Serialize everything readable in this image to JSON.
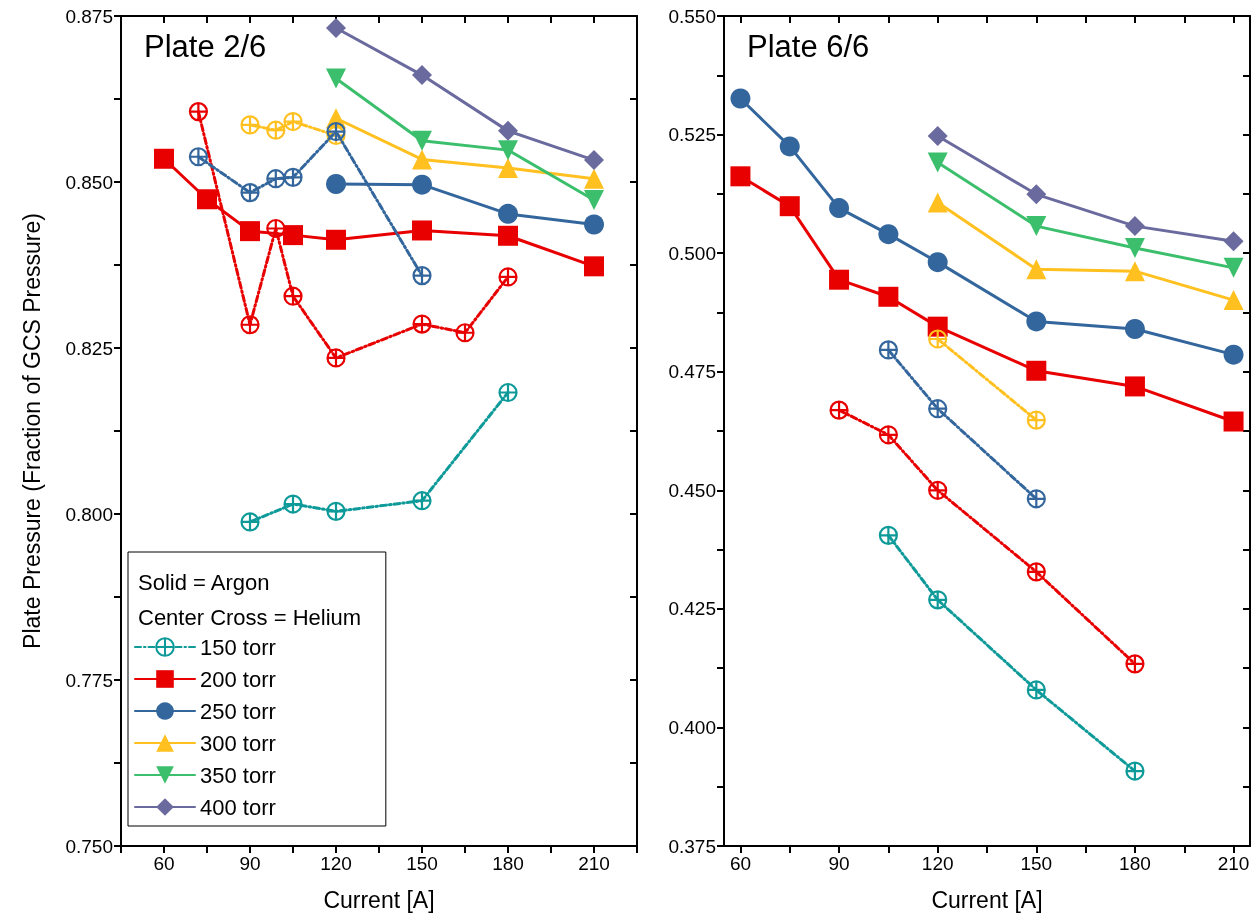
{
  "chart_data": [
    {
      "type": "line",
      "title": "Plate 2/6",
      "xlabel": "Current [A]",
      "ylabel": "Plate Pressure (Fraction of GCS Pressure)",
      "legend_title": "Solid = Argon\nCenter Cross = Helium",
      "legend": "bottom left",
      "xlim": [
        45,
        225
      ],
      "xticks": [
        {
          "value": 45,
          "label": null
        },
        60,
        {
          "value": 75,
          "label": null
        },
        90,
        {
          "value": 105,
          "label": null
        },
        120,
        {
          "value": 135,
          "label": null
        },
        150,
        {
          "value": 165,
          "label": null
        },
        180,
        {
          "value": 195,
          "label": null
        },
        210,
        {
          "value": 225,
          "label": null
        }
      ],
      "ylim": [
        0.75,
        0.875
      ],
      "yticks": [
        {
          "value": 0.75,
          "label": "0.750"
        },
        {
          "value": 0.7625,
          "label": null
        },
        {
          "value": 0.775,
          "label": "0.775"
        },
        {
          "value": 0.7875,
          "label": null
        },
        {
          "value": 0.8,
          "label": "0.800"
        },
        {
          "value": 0.8125,
          "label": null
        },
        {
          "value": 0.825,
          "label": "0.825"
        },
        {
          "value": 0.8375,
          "label": null
        },
        {
          "value": 0.85,
          "label": "0.850"
        },
        {
          "value": 0.8625,
          "label": null
        },
        {
          "value": 0.875,
          "label": "0.875"
        }
      ],
      "series": [
        {
          "name": "150 torr",
          "color": "#0f9a9a",
          "x": [
            90,
            105,
            120,
            150,
            180
          ],
          "values": [
            0.7988,
            0.8015,
            0.8004,
            0.802,
            0.8183
          ],
          "marker": "cross",
          "line_style": "dashdot"
        },
        {
          "name": "200 torr",
          "color": "#e80000",
          "x": [
            60,
            75,
            90,
            105,
            120,
            150,
            180,
            210
          ],
          "values": [
            0.8535,
            0.8474,
            0.8426,
            0.842,
            0.8413,
            0.8427,
            0.8419,
            0.8373
          ],
          "marker": "square",
          "line_style": "solid"
        },
        {
          "name": "250 torr",
          "color": "#33669c",
          "x": [
            120,
            150,
            180,
            210
          ],
          "values": [
            0.8497,
            0.8496,
            0.8452,
            0.8436
          ],
          "marker": "circle",
          "line_style": "solid"
        },
        {
          "name": "300 torr",
          "color": "#ffc020",
          "x": [
            120,
            150,
            180,
            210
          ],
          "values": [
            0.8596,
            0.8534,
            0.8521,
            0.8505
          ],
          "marker": "triangle",
          "line_style": "solid"
        },
        {
          "name": "350 torr",
          "color": "#3cbf6c",
          "x": [
            120,
            150,
            180,
            210
          ],
          "values": [
            0.8656,
            0.8562,
            0.8548,
            0.8473
          ],
          "marker": "triangle-down",
          "line_style": "solid"
        },
        {
          "name": "400 torr",
          "color": "#6a6a9e",
          "x": [
            120,
            150,
            180,
            210
          ],
          "values": [
            0.8732,
            0.8661,
            0.8577,
            0.8533
          ],
          "marker": "diamond",
          "line_style": "solid"
        },
        {
          "color": "#e80000",
          "x": [
            72,
            90,
            99,
            105,
            120,
            150,
            165,
            180
          ],
          "values": [
            0.8606,
            0.8285,
            0.843,
            0.8328,
            0.8235,
            0.8286,
            0.8273,
            0.8357
          ],
          "marker": "cross",
          "line_style": "dashdot"
        },
        {
          "color": "#ffc020",
          "x": [
            90,
            99,
            105,
            120
          ],
          "values": [
            0.8586,
            0.8578,
            0.8591,
            0.857
          ],
          "marker": "cross",
          "line_style": "dashdot"
        },
        {
          "color": "#33669c",
          "x": [
            72,
            90,
            99,
            105,
            120,
            150
          ],
          "values": [
            0.8538,
            0.8484,
            0.8505,
            0.8507,
            0.8576,
            0.8359
          ],
          "marker": "cross",
          "line_style": "dashdot"
        }
      ]
    },
    {
      "type": "line",
      "title": "Plate 6/6",
      "xlabel": "Current [A]",
      "xlim": [
        55,
        215
      ],
      "xticks": [
        60,
        {
          "value": 75,
          "label": null
        },
        90,
        {
          "value": 105,
          "label": null
        },
        120,
        {
          "value": 135,
          "label": null
        },
        150,
        {
          "value": 165,
          "label": null
        },
        180,
        {
          "value": 195,
          "label": null
        },
        210
      ],
      "ylim": [
        0.375,
        0.55
      ],
      "yticks": [
        {
          "value": 0.375,
          "label": "0.375"
        },
        {
          "value": 0.3875,
          "label": null
        },
        {
          "value": 0.4,
          "label": "0.400"
        },
        {
          "value": 0.4125,
          "label": null
        },
        {
          "value": 0.425,
          "label": "0.425"
        },
        {
          "value": 0.4375,
          "label": null
        },
        {
          "value": 0.45,
          "label": "0.450"
        },
        {
          "value": 0.4625,
          "label": null
        },
        {
          "value": 0.475,
          "label": "0.475"
        },
        {
          "value": 0.4875,
          "label": null
        },
        {
          "value": 0.5,
          "label": "0.500"
        },
        {
          "value": 0.5125,
          "label": null
        },
        {
          "value": 0.525,
          "label": "0.525"
        },
        {
          "value": 0.5375,
          "label": null
        },
        {
          "value": 0.55,
          "label": "0.550"
        }
      ],
      "series": [
        {
          "color": "#0f9a9a",
          "x": [
            105,
            120,
            150,
            180
          ],
          "values": [
            0.4405,
            0.4269,
            0.4079,
            0.3908
          ],
          "marker": "cross",
          "line_style": "dashdot"
        },
        {
          "color": "#e80000",
          "x": [
            60,
            75,
            90,
            105,
            120,
            150,
            180,
            210
          ],
          "values": [
            0.5162,
            0.5099,
            0.4944,
            0.4908,
            0.4845,
            0.4752,
            0.4719,
            0.4645
          ],
          "marker": "square",
          "line_style": "solid"
        },
        {
          "color": "#33669c",
          "x": [
            60,
            75,
            90,
            105,
            120,
            150,
            180,
            210
          ],
          "values": [
            0.5326,
            0.5225,
            0.5095,
            0.504,
            0.4981,
            0.4856,
            0.484,
            0.4786
          ],
          "marker": "circle",
          "line_style": "solid"
        },
        {
          "color": "#ffc020",
          "x": [
            120,
            150,
            180,
            210
          ],
          "values": [
            0.5107,
            0.4966,
            0.4962,
            0.4901
          ],
          "marker": "triangle",
          "line_style": "solid"
        },
        {
          "color": "#3cbf6c",
          "x": [
            120,
            150,
            180,
            210
          ],
          "values": [
            0.5191,
            0.5057,
            0.5011,
            0.4969
          ],
          "marker": "triangle-down",
          "line_style": "solid"
        },
        {
          "color": "#6a6a9e",
          "x": [
            120,
            150,
            180,
            210
          ],
          "values": [
            0.5247,
            0.5124,
            0.5057,
            0.5025
          ],
          "marker": "diamond",
          "line_style": "solid"
        },
        {
          "color": "#e80000",
          "x": [
            90,
            105,
            120,
            150,
            180
          ],
          "values": [
            0.4669,
            0.4617,
            0.45,
            0.4328,
            0.4134
          ],
          "marker": "cross",
          "line_style": "dashdot"
        },
        {
          "color": "#33669c",
          "x": [
            105,
            120,
            150
          ],
          "values": [
            0.4796,
            0.4672,
            0.4482
          ],
          "marker": "cross",
          "line_style": "dashdot"
        },
        {
          "color": "#ffc020",
          "x": [
            120,
            150
          ],
          "values": [
            0.4819,
            0.4648
          ],
          "marker": "cross",
          "line_style": "dashdot"
        }
      ]
    }
  ]
}
